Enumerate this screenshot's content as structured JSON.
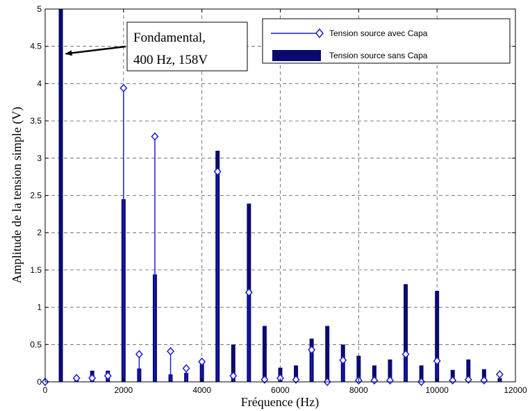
{
  "chart_data": {
    "type": "bar",
    "xlabel": "Fréquence (Hz)",
    "ylabel": "Amplitude de la tension simple (V)",
    "xlim": [
      0,
      12000
    ],
    "ylim": [
      0,
      5
    ],
    "xticks": [
      0,
      2000,
      4000,
      6000,
      8000,
      10000,
      12000
    ],
    "yticks": [
      0,
      0.5,
      1,
      1.5,
      2,
      2.5,
      3,
      3.5,
      4,
      4.5,
      5
    ],
    "grid": true,
    "legend_position": "top-right",
    "colors": {
      "bars": "#0a0a6e",
      "stems": "#1c1cd6",
      "axes": "#000000"
    },
    "series": [
      {
        "name": "Tension source avec Capa",
        "style": "stem",
        "x": [
          0,
          800,
          1200,
          1600,
          2000,
          2400,
          2800,
          3200,
          3600,
          4000,
          4400,
          4800,
          5200,
          5600,
          6000,
          6400,
          6800,
          7200,
          7600,
          8000,
          8400,
          8800,
          9200,
          9600,
          10000,
          10400,
          10800,
          11200,
          11600
        ],
        "values": [
          0.0,
          0.05,
          0.05,
          0.08,
          3.94,
          0.37,
          3.29,
          0.41,
          0.18,
          0.27,
          2.82,
          0.08,
          1.2,
          0.03,
          0.05,
          0.03,
          0.43,
          0.0,
          0.29,
          0.02,
          0.02,
          0.02,
          0.37,
          0.0,
          0.28,
          0.02,
          0.03,
          0.02,
          0.1
        ]
      },
      {
        "name": "Tension source sans Capa",
        "style": "bar",
        "x": [
          400,
          800,
          1200,
          1600,
          2000,
          2400,
          2800,
          3200,
          3600,
          4000,
          4400,
          4800,
          5200,
          5600,
          6000,
          6400,
          6800,
          7200,
          7600,
          8000,
          8400,
          8800,
          9200,
          9600,
          10000,
          10400,
          10800,
          11200,
          11600
        ],
        "values": [
          5.0,
          0.08,
          0.15,
          0.15,
          2.45,
          0.18,
          1.44,
          0.1,
          0.12,
          0.28,
          3.1,
          0.5,
          2.39,
          0.75,
          0.19,
          0.22,
          0.58,
          0.75,
          0.5,
          0.35,
          0.22,
          0.3,
          1.31,
          0.22,
          1.22,
          0.16,
          0.3,
          0.17,
          0.05
        ]
      }
    ],
    "annotations": [
      {
        "lines": [
          "Fondamental,",
          "400 Hz, 158V"
        ],
        "points_to": {
          "x": 400,
          "y": 4.4
        }
      }
    ]
  }
}
